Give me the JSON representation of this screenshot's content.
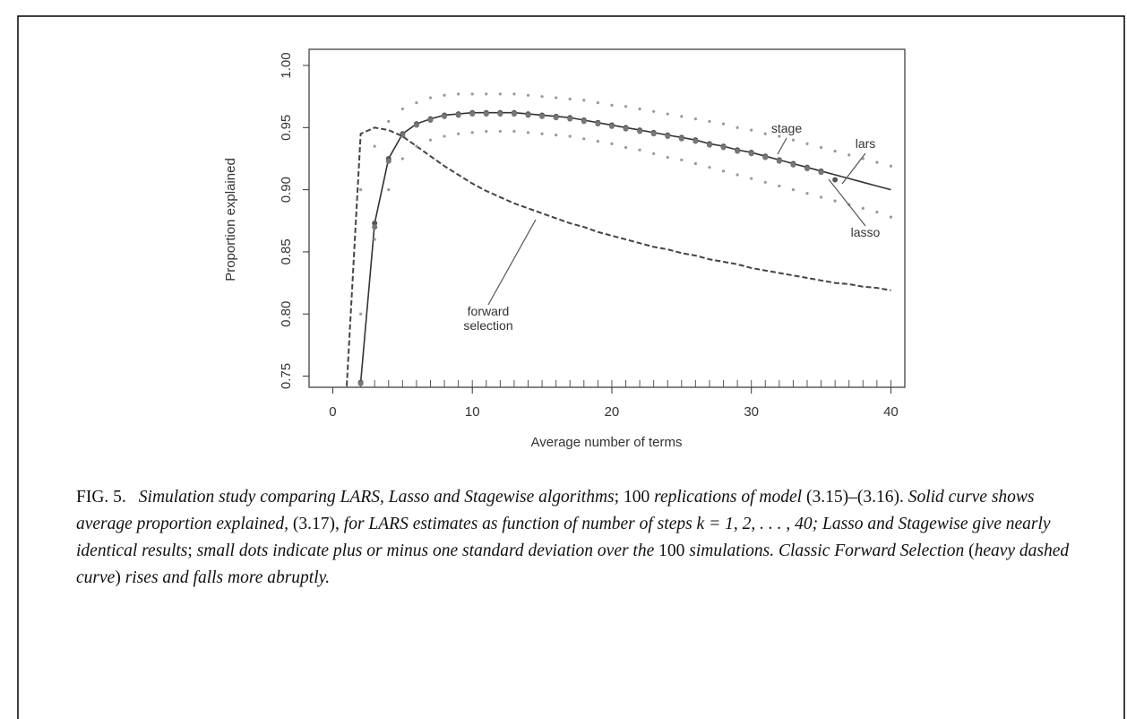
{
  "chart_data": {
    "type": "line",
    "x_label": "Average number of terms",
    "y_label": "Proportion explained",
    "x": [
      1,
      2,
      3,
      4,
      5,
      6,
      7,
      8,
      9,
      10,
      11,
      12,
      13,
      14,
      15,
      16,
      17,
      18,
      19,
      20,
      21,
      22,
      23,
      24,
      25,
      26,
      27,
      28,
      29,
      30,
      31,
      32,
      33,
      34,
      35,
      36,
      37,
      38,
      39,
      40
    ],
    "xlim": [
      -1.7,
      41
    ],
    "ylim": [
      0.741,
      1.013
    ],
    "xticks": [
      0,
      10,
      20,
      30,
      40
    ],
    "yticks": [
      0.75,
      {
        "value": 0.8,
        "label": "0.80"
      },
      0.85,
      {
        "value": 0.9,
        "label": "0.90"
      },
      0.95,
      {
        "value": 1.0,
        "label": "1.00"
      }
    ],
    "series": [
      {
        "name": "lars",
        "color": "#333333",
        "style": "solid",
        "values": [
          null,
          0.745,
          0.873,
          0.925,
          0.945,
          0.953,
          0.957,
          0.96,
          0.961,
          0.962,
          0.962,
          0.962,
          0.962,
          0.961,
          0.96,
          0.959,
          0.958,
          0.956,
          0.954,
          0.952,
          0.95,
          0.948,
          0.946,
          0.944,
          0.942,
          0.94,
          0.937,
          0.935,
          0.932,
          0.93,
          0.927,
          0.924,
          0.921,
          0.918,
          0.915,
          0.912,
          0.909,
          0.906,
          0.903,
          0.9
        ]
      },
      {
        "name": "lasso",
        "color": "#555555",
        "style": "dots",
        "values": [
          null,
          0.745,
          0.873,
          0.925,
          0.945,
          0.953,
          0.957,
          0.96,
          0.961,
          0.962,
          0.962,
          0.962,
          0.962,
          0.961,
          0.96,
          0.959,
          0.958,
          0.956,
          0.954,
          0.952,
          0.95,
          0.948,
          0.946,
          0.944,
          0.942,
          0.94,
          0.937,
          0.935,
          0.932,
          0.93,
          0.927,
          0.924,
          0.921,
          0.918,
          0.915,
          0.908,
          null,
          null,
          null,
          null
        ]
      },
      {
        "name": "stage",
        "color": "#777777",
        "style": "dots",
        "values": [
          null,
          0.744,
          0.87,
          0.923,
          0.944,
          0.952,
          0.956,
          0.959,
          0.96,
          0.961,
          0.961,
          0.961,
          0.961,
          0.96,
          0.959,
          0.958,
          0.957,
          0.955,
          0.953,
          0.951,
          0.949,
          0.947,
          0.945,
          0.943,
          0.941,
          0.939,
          0.936,
          0.934,
          0.931,
          0.929,
          0.926,
          0.923,
          0.92,
          0.917,
          0.914,
          null,
          null,
          null,
          null,
          null
        ]
      },
      {
        "name": "forward selection",
        "color": "#444444",
        "style": "dashed",
        "values": [
          0.742,
          0.945,
          0.95,
          0.948,
          0.943,
          0.935,
          0.927,
          0.919,
          0.912,
          0.905,
          0.899,
          0.894,
          0.889,
          0.885,
          0.881,
          0.877,
          0.873,
          0.87,
          0.866,
          0.863,
          0.86,
          0.857,
          0.854,
          0.852,
          0.849,
          0.847,
          0.844,
          0.842,
          0.84,
          0.837,
          0.835,
          0.833,
          0.831,
          0.829,
          0.827,
          0.825,
          0.824,
          0.822,
          0.821,
          0.819
        ]
      },
      {
        "color": "#999999",
        "style": "dotted",
        "values": [
          null,
          0.9,
          0.935,
          0.955,
          0.965,
          0.97,
          0.974,
          0.976,
          0.977,
          0.977,
          0.977,
          0.977,
          0.977,
          0.976,
          0.975,
          0.974,
          0.973,
          0.972,
          0.97,
          0.968,
          0.967,
          0.965,
          0.963,
          0.961,
          0.959,
          0.957,
          0.955,
          0.953,
          0.95,
          0.948,
          0.945,
          0.943,
          0.94,
          0.937,
          0.934,
          0.931,
          0.928,
          0.925,
          0.922,
          0.919
        ]
      },
      {
        "color": "#999999",
        "style": "dotted",
        "values": [
          null,
          0.8,
          0.86,
          0.9,
          0.925,
          0.935,
          0.94,
          0.943,
          0.945,
          0.946,
          0.947,
          0.947,
          0.947,
          0.946,
          0.945,
          0.944,
          0.943,
          0.941,
          0.939,
          0.937,
          0.934,
          0.932,
          0.929,
          0.926,
          0.924,
          0.921,
          0.918,
          0.915,
          0.912,
          0.909,
          0.906,
          0.903,
          0.9,
          0.897,
          0.894,
          0.891,
          0.888,
          0.885,
          0.882,
          0.878
        ]
      }
    ]
  },
  "caption": {
    "label": "FIG. 5.",
    "segments": [
      {
        "text": "Simulation study comparing LARS, Lasso and Stagewise algorithms",
        "italic": true
      },
      {
        "text": "; 100 ",
        "italic": false
      },
      {
        "text": "replications of model ",
        "italic": true
      },
      {
        "text": "(3.15)–(3.16). ",
        "italic": false
      },
      {
        "text": "Solid curve shows average proportion explained, ",
        "italic": true
      },
      {
        "text": "(3.17), ",
        "italic": false
      },
      {
        "text": "for LARS estimates as function of number of steps k = 1, 2, . . . , 40; Lasso and Stagewise give nearly identical results",
        "italic": true
      },
      {
        "text": "; ",
        "italic": false
      },
      {
        "text": "small dots indicate plus or minus one standard deviation over the ",
        "italic": true
      },
      {
        "text": "100 ",
        "italic": false
      },
      {
        "text": "simulations. Classic Forward Selection ",
        "italic": true
      },
      {
        "text": "(",
        "italic": false
      },
      {
        "text": "heavy dashed curve",
        "italic": true
      },
      {
        "text": ") ",
        "italic": false
      },
      {
        "text": "rises and falls more abruptly.",
        "italic": true
      }
    ]
  }
}
